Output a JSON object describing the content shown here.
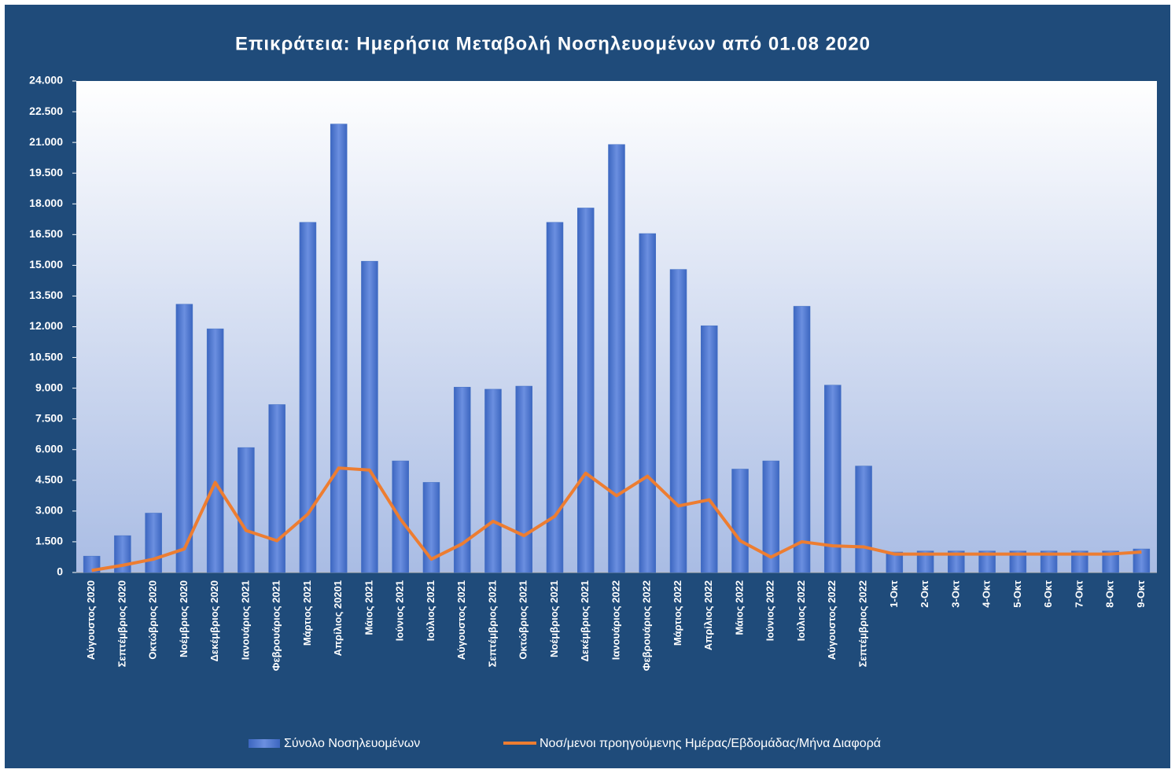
{
  "chart_data": {
    "type": "bar_line",
    "title": "Επικράτεια: Ημερήσια Μεταβολή Νοσηλευομένων από  01.08 2020",
    "categories": [
      "Αύγουστος 2020",
      "Σεπτέμβριος 2020",
      "Οκτώβριος 2020",
      "Νοέμβριος 2020",
      "Δεκέμβριος 2020",
      "Ιανουάριος 2021",
      "Φεβρουάριος 2021",
      "Μάρτιος 2021",
      "Απρίλιος 20201",
      "Μάιος 2021",
      "Ιούνιος 2021",
      "Ιούλιος 2021",
      "Αύγουστος 2021",
      "Σεπτέμβριος 2021",
      "Οκτώβριος 2021",
      "Νοέμβριος 2021",
      "Δεκέμβριος 2021",
      "Ιανουάριος 2022",
      "Φεβρουάριος 2022",
      "Μάρτιος 2022",
      "Απρίλιος 2022",
      "Μάιος 2022",
      "Ιούνιος 2022",
      "Ιούλιος 2022",
      "Αύγουστος 2022",
      "Σεπτέμβριος 2022",
      "1-Οκτ",
      "2-Οκτ",
      "3-Οκτ",
      "4-Οκτ",
      "5-Οκτ",
      "6-Οκτ",
      "7-Οκτ",
      "8-Οκτ",
      "9-Οκτ"
    ],
    "series": [
      {
        "name": "Σύνολο Νοσηλευομένων",
        "type": "bar",
        "color": "#4472c4",
        "values": [
          800,
          1800,
          2900,
          13100,
          11900,
          6100,
          8200,
          17100,
          21900,
          15200,
          5450,
          4400,
          9050,
          8950,
          9100,
          17100,
          17800,
          20900,
          16550,
          14800,
          12050,
          5050,
          5450,
          13000,
          9150,
          5200,
          1000,
          1050,
          1050,
          1050,
          1050,
          1050,
          1050,
          1050,
          1150
        ]
      },
      {
        "name": "Νοσ/μενοι προηγούμενης Ημέρας/Εβδομάδας/Μήνα Διαφορά",
        "type": "line",
        "color": "#ed7d31",
        "values": [
          100,
          350,
          650,
          1150,
          4400,
          2050,
          1550,
          2850,
          5100,
          5000,
          2600,
          650,
          1400,
          2500,
          1800,
          2750,
          4850,
          3750,
          4700,
          3250,
          3550,
          1550,
          750,
          1500,
          1300,
          1250,
          900,
          900,
          900,
          900,
          900,
          900,
          900,
          900,
          1000
        ]
      }
    ],
    "ylim": [
      0,
      24000
    ],
    "yticks": [
      0,
      {
        "value": 1500,
        "label": "1.500"
      },
      {
        "value": 3000,
        "label": "3.000"
      },
      {
        "value": 4500,
        "label": "4.500"
      },
      {
        "value": 6000,
        "label": "6.000"
      },
      {
        "value": 7500,
        "label": "7.500"
      },
      {
        "value": 9000,
        "label": "9.000"
      },
      {
        "value": 10500,
        "label": "10.500"
      },
      {
        "value": 12000,
        "label": "12.000"
      },
      {
        "value": 13500,
        "label": "13.500"
      },
      {
        "value": 15000,
        "label": "15.000"
      },
      {
        "value": 16500,
        "label": "16.500"
      },
      {
        "value": 18000,
        "label": "18.000"
      },
      {
        "value": 19500,
        "label": "19.500"
      },
      {
        "value": 21000,
        "label": "21.000"
      },
      {
        "value": 22500,
        "label": "22.500"
      },
      {
        "value": 24000,
        "label": "24.000"
      }
    ],
    "legend": "bottom"
  }
}
